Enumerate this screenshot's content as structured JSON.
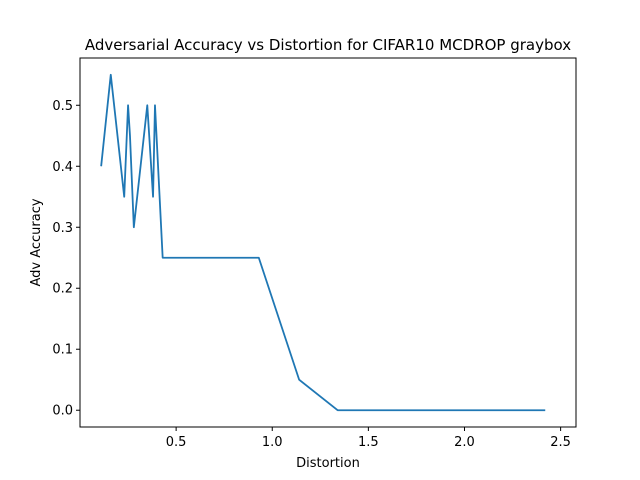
{
  "chart_data": {
    "type": "line",
    "title": "Adversarial Accuracy vs Distortion for CIFAR10 MCDROP graybox",
    "xlabel": "Distortion",
    "ylabel": "Adv Accuracy",
    "xlim": [
      0.0,
      2.58
    ],
    "ylim": [
      -0.0275,
      0.5775
    ],
    "xticks": [
      0.5,
      1.0,
      1.5,
      2.0,
      2.5
    ],
    "xtick_labels": [
      "0.5",
      "1.0",
      "1.5",
      "2.0",
      "2.5"
    ],
    "yticks": [
      0.0,
      0.1,
      0.2,
      0.3,
      0.4,
      0.5
    ],
    "ytick_labels": [
      "0.0",
      "0.1",
      "0.2",
      "0.3",
      "0.4",
      "0.5"
    ],
    "grid": false,
    "series": [
      {
        "color": "#1f77b4",
        "x": [
          0.11,
          0.16,
          0.23,
          0.25,
          0.26,
          0.28,
          0.35,
          0.38,
          0.39,
          0.43,
          0.93,
          1.14,
          1.34,
          2.42
        ],
        "y": [
          0.4,
          0.55,
          0.35,
          0.5,
          0.45,
          0.3,
          0.5,
          0.35,
          0.5,
          0.25,
          0.25,
          0.05,
          0.0,
          0.0
        ]
      }
    ]
  }
}
